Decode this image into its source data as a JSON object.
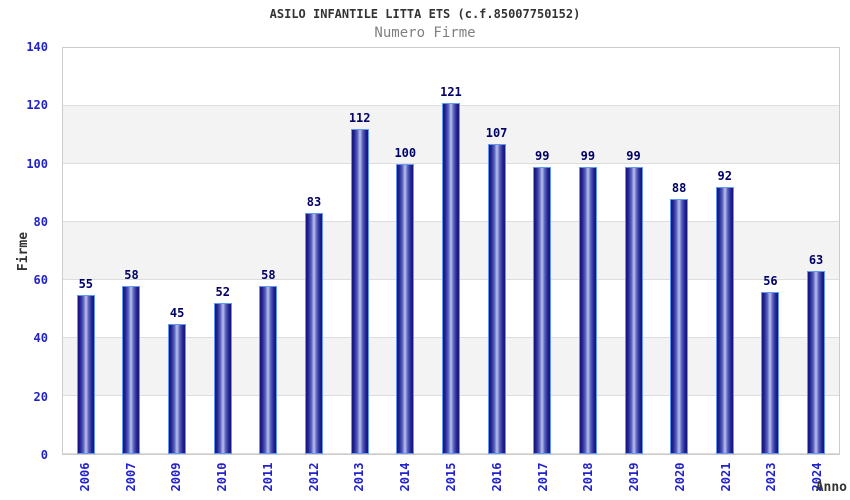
{
  "chart_data": {
    "type": "bar",
    "title": "ASILO INFANTILE LITTA ETS (c.f.85007750152)",
    "subtitle": "Numero Firme",
    "xlabel": "Anno",
    "ylabel": "Firme",
    "categories": [
      "2006",
      "2007",
      "2009",
      "2010",
      "2011",
      "2012",
      "2013",
      "2014",
      "2015",
      "2016",
      "2017",
      "2018",
      "2019",
      "2020",
      "2021",
      "2023",
      "2024"
    ],
    "values": [
      55,
      58,
      45,
      52,
      58,
      83,
      112,
      100,
      121,
      107,
      99,
      99,
      99,
      88,
      92,
      56,
      63
    ],
    "ylim": [
      0,
      140
    ],
    "ytick_step": 20,
    "grid": true,
    "legend": "none",
    "colors": {
      "bar_dark": "#15157c",
      "bar_light": "#aeb4e6",
      "bar_border": "#6598f0",
      "tick_label": "#2222cc",
      "value_label": "#000066",
      "title": "#333333",
      "subtitle": "#808080",
      "axis_title": "#333333",
      "band_gray": "#f3f3f3",
      "gridline": "#dddddd",
      "plot_border": "#cccccc"
    }
  }
}
